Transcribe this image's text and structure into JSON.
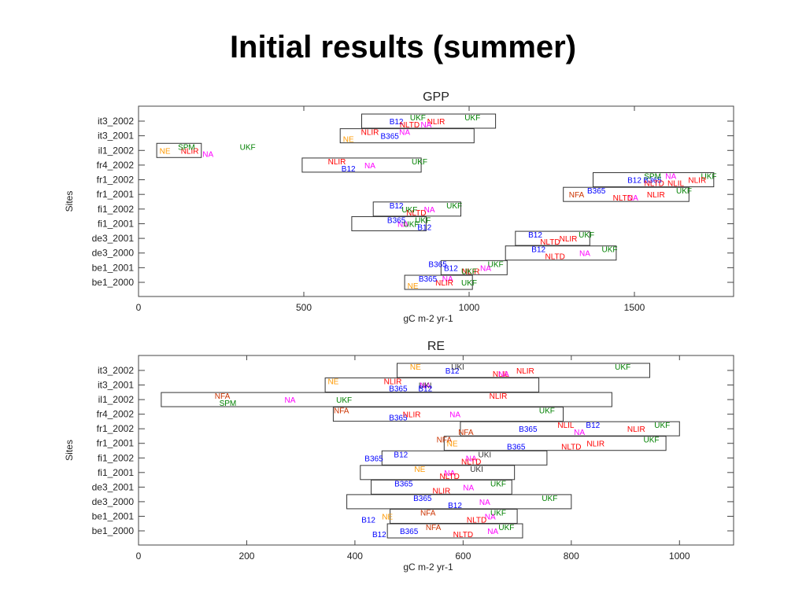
{
  "slide": {
    "title": "Initial results (summer)"
  },
  "colors": {
    "NLIR": "#ff0000",
    "NLIL": "#ff0000",
    "NLTD": "#ff0000",
    "NE": "#ff9900",
    "NFA": "#cc3300",
    "NA": "#ff00ff",
    "B12": "#0000ff",
    "B365": "#0000ff",
    "UKF": "#008000",
    "SPM": "#008000"
  },
  "chart_data": [
    {
      "type": "range",
      "title": "GPP",
      "xlabel": "gC m-2 yr-1",
      "ylabel": "Sites",
      "xlim": [
        0,
        1800
      ],
      "xticks": [
        0,
        500,
        1000,
        1500
      ],
      "categories": [
        "it3_2002",
        "it3_2001",
        "il1_2002",
        "fr4_2002",
        "fr1_2002",
        "fr1_2001",
        "fi1_2002",
        "fi1_2001",
        "de3_2001",
        "de3_2000",
        "be1_2001",
        "be1_2000"
      ],
      "ranges": [
        [
          675,
          1080
        ],
        [
          610,
          1015
        ],
        [
          55,
          190
        ],
        [
          495,
          855
        ],
        [
          1375,
          1740
        ],
        [
          1285,
          1665
        ],
        [
          710,
          975
        ],
        [
          645,
          870
        ],
        [
          1140,
          1365
        ],
        [
          1110,
          1445
        ],
        [
          915,
          1115
        ],
        [
          805,
          1010
        ]
      ],
      "labels": [
        [
          [
            "UKF",
            1010
          ],
          [
            "NLIR",
            900
          ],
          [
            "NA",
            870
          ],
          [
            "UKF",
            845
          ],
          [
            "B12",
            780
          ],
          [
            "NLTD",
            820
          ]
        ],
        [
          [
            "NA",
            805
          ],
          [
            "B365",
            760
          ],
          [
            "NE",
            635
          ],
          [
            "NLIR",
            700
          ]
        ],
        [
          [
            "UKF",
            330
          ],
          [
            "NLIR",
            155
          ],
          [
            "NA",
            210
          ],
          [
            "SPM",
            145
          ],
          [
            "NE",
            80
          ]
        ],
        [
          [
            "UKF",
            850
          ],
          [
            "NA",
            700
          ],
          [
            "B12",
            635
          ],
          [
            "NLIR",
            600
          ]
        ],
        [
          [
            "UKF",
            1725
          ],
          [
            "NLIR",
            1690
          ],
          [
            "NLIL",
            1625
          ],
          [
            "NA",
            1610
          ],
          [
            "B365",
            1555
          ],
          [
            "NLTD",
            1560
          ],
          [
            "SPM",
            1555
          ],
          [
            "B12",
            1500
          ]
        ],
        [
          [
            "UKF",
            1650
          ],
          [
            "NLIR",
            1565
          ],
          [
            "NA",
            1495
          ],
          [
            "B365",
            1385
          ],
          [
            "NFA",
            1325
          ],
          [
            "NLTD",
            1465
          ]
        ],
        [
          [
            "UKF",
            955
          ],
          [
            "NA",
            880
          ],
          [
            "NLTD",
            840
          ],
          [
            "B12",
            780
          ],
          [
            "UKF",
            820
          ]
        ],
        [
          [
            "UKF",
            860
          ],
          [
            "NA",
            800
          ],
          [
            "B12",
            865
          ],
          [
            "B365",
            780
          ],
          [
            "UKF",
            825
          ]
        ],
        [
          [
            "UKF",
            1355
          ],
          [
            "NLIR",
            1300
          ],
          [
            "NLTD",
            1245
          ],
          [
            "B12",
            1200
          ]
        ],
        [
          [
            "UKF",
            1425
          ],
          [
            "NA",
            1350
          ],
          [
            "NLTD",
            1260
          ],
          [
            "B12",
            1210
          ]
        ],
        [
          [
            "UKF",
            1080
          ],
          [
            "NA",
            1050
          ],
          [
            "NLIR",
            1005
          ],
          [
            "B365",
            905
          ],
          [
            "B12",
            945
          ],
          [
            "UKF",
            1000
          ]
        ],
        [
          [
            "NA",
            935
          ],
          [
            "NLIR",
            925
          ],
          [
            "NE",
            830
          ],
          [
            "B365",
            875
          ],
          [
            "UKF",
            1000
          ]
        ]
      ]
    },
    {
      "type": "range",
      "title": "RE",
      "xlabel": "gC m-2 yr-1",
      "ylabel": "Sites",
      "xlim": [
        0,
        1100
      ],
      "xticks": [
        0,
        200,
        400,
        600,
        800,
        1000
      ],
      "categories": [
        "it3_2002",
        "it3_2001",
        "il1_2002",
        "fr4_2002",
        "fr1_2002",
        "fr1_2001",
        "fi1_2002",
        "fi1_2001",
        "de3_2001",
        "de3_2000",
        "be1_2001",
        "be1_2000"
      ],
      "ranges": [
        [
          478,
          945
        ],
        [
          345,
          740
        ],
        [
          42,
          875
        ],
        [
          360,
          785
        ],
        [
          595,
          1000
        ],
        [
          565,
          975
        ],
        [
          450,
          755
        ],
        [
          410,
          695
        ],
        [
          430,
          690
        ],
        [
          385,
          800
        ],
        [
          465,
          700
        ],
        [
          460,
          710
        ]
      ],
      "labels": [
        [
          [
            "UKF",
            895
          ],
          [
            "NLIR",
            715
          ],
          [
            "NLIL",
            670
          ],
          [
            "NE",
            512
          ],
          [
            "B12",
            580
          ],
          [
            "NA",
            675
          ],
          [
            "UKI",
            590
          ]
        ],
        [
          [
            "NLIR",
            470
          ],
          [
            "NA",
            530
          ],
          [
            "B365",
            480
          ],
          [
            "NE",
            360
          ],
          [
            "UKI",
            530
          ],
          [
            "B12",
            530
          ]
        ],
        [
          [
            "NLIR",
            665
          ],
          [
            "NA",
            280
          ],
          [
            "SPM",
            165
          ],
          [
            "NFA",
            155
          ],
          [
            "UKF",
            380
          ]
        ],
        [
          [
            "UKF",
            755
          ],
          [
            "NA",
            585
          ],
          [
            "B365",
            480
          ],
          [
            "NFA",
            375
          ],
          [
            "NLIR",
            505
          ]
        ],
        [
          [
            "UKF",
            968
          ],
          [
            "NLIR",
            920
          ],
          [
            "NA",
            815
          ],
          [
            "B12",
            840
          ],
          [
            "B365",
            720
          ],
          [
            "NFA",
            605
          ],
          [
            "NLIL",
            790
          ]
        ],
        [
          [
            "UKF",
            948
          ],
          [
            "NLIR",
            845
          ],
          [
            "NLTD",
            800
          ],
          [
            "NFA",
            565
          ],
          [
            "NE",
            580
          ],
          [
            "B365",
            698
          ]
        ],
        [
          [
            "UKI",
            640
          ],
          [
            "NA",
            615
          ],
          [
            "NLTD",
            615
          ],
          [
            "B12",
            485
          ],
          [
            "B365",
            435
          ]
        ],
        [
          [
            "UKI",
            625
          ],
          [
            "NA",
            575
          ],
          [
            "NLTD",
            575
          ],
          [
            "NE",
            520
          ]
        ],
        [
          [
            "UKF",
            665
          ],
          [
            "NA",
            610
          ],
          [
            "NLIR",
            560
          ],
          [
            "B365",
            490
          ]
        ],
        [
          [
            "UKF",
            760
          ],
          [
            "NA",
            640
          ],
          [
            "B12",
            585
          ],
          [
            "B365",
            525
          ]
        ],
        [
          [
            "UKF",
            665
          ],
          [
            "NA",
            650
          ],
          [
            "NLTD",
            625
          ],
          [
            "NFA",
            535
          ],
          [
            "NE",
            460
          ],
          [
            "B12",
            425
          ]
        ],
        [
          [
            "UKF",
            680
          ],
          [
            "NA",
            655
          ],
          [
            "NLTD",
            600
          ],
          [
            "NFA",
            545
          ],
          [
            "B365",
            500
          ],
          [
            "B12",
            445
          ]
        ]
      ]
    }
  ]
}
